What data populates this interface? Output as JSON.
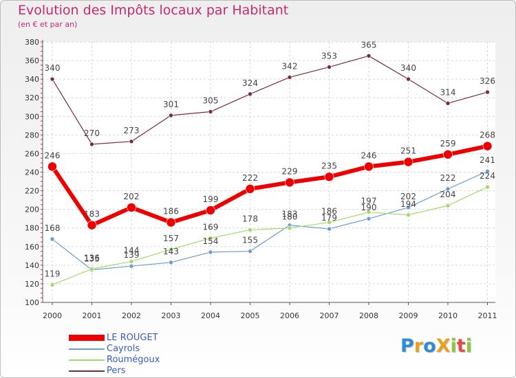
{
  "title": "Evolution des Impôts locaux par Habitant",
  "subtitle": "(en € et par an)",
  "logo": {
    "text": "ProXiti",
    "letters": [
      {
        "ch": "P",
        "color": "#2f8bd6"
      },
      {
        "ch": "r",
        "color": "#e8a21f"
      },
      {
        "ch": "o",
        "color": "#2f8bd6"
      },
      {
        "ch": "X",
        "color": "#e8a21f"
      },
      {
        "ch": "i",
        "color": "#8cc63f"
      },
      {
        "ch": "t",
        "color": "#e24a4a"
      },
      {
        "ch": "i",
        "color": "#8cc63f"
      }
    ]
  },
  "chart_data": {
    "type": "line",
    "title": "Evolution des Impôts locaux par Habitant",
    "subtitle": "(en € et par an)",
    "x": [
      "2000",
      "2001",
      "2002",
      "2003",
      "2004",
      "2005",
      "2006",
      "2007",
      "2008",
      "2009",
      "2010",
      "2011"
    ],
    "ylim": [
      100,
      380
    ],
    "yticks": [
      100,
      120,
      140,
      160,
      180,
      200,
      220,
      240,
      260,
      280,
      300,
      320,
      340,
      360,
      380
    ],
    "grid": true,
    "legend_position": "bottom-left",
    "series": [
      {
        "name": "LE ROUGET",
        "color": "#ee0000",
        "values": [
          246,
          183,
          202,
          186,
          199,
          222,
          229,
          235,
          246,
          251,
          259,
          268
        ]
      },
      {
        "name": "Cayrols",
        "color": "#6a9bd1",
        "values": [
          168,
          135,
          139,
          143,
          154,
          155,
          183,
          179,
          190,
          202,
          222,
          241
        ]
      },
      {
        "name": "Roumégoux",
        "color": "#a2d96a",
        "values": [
          119,
          136,
          144,
          157,
          169,
          178,
          180,
          186,
          197,
          194,
          204,
          224
        ]
      },
      {
        "name": "Pers",
        "color": "#7a2b33",
        "values": [
          340,
          270,
          273,
          301,
          305,
          324,
          342,
          353,
          365,
          340,
          314,
          326
        ]
      }
    ]
  }
}
